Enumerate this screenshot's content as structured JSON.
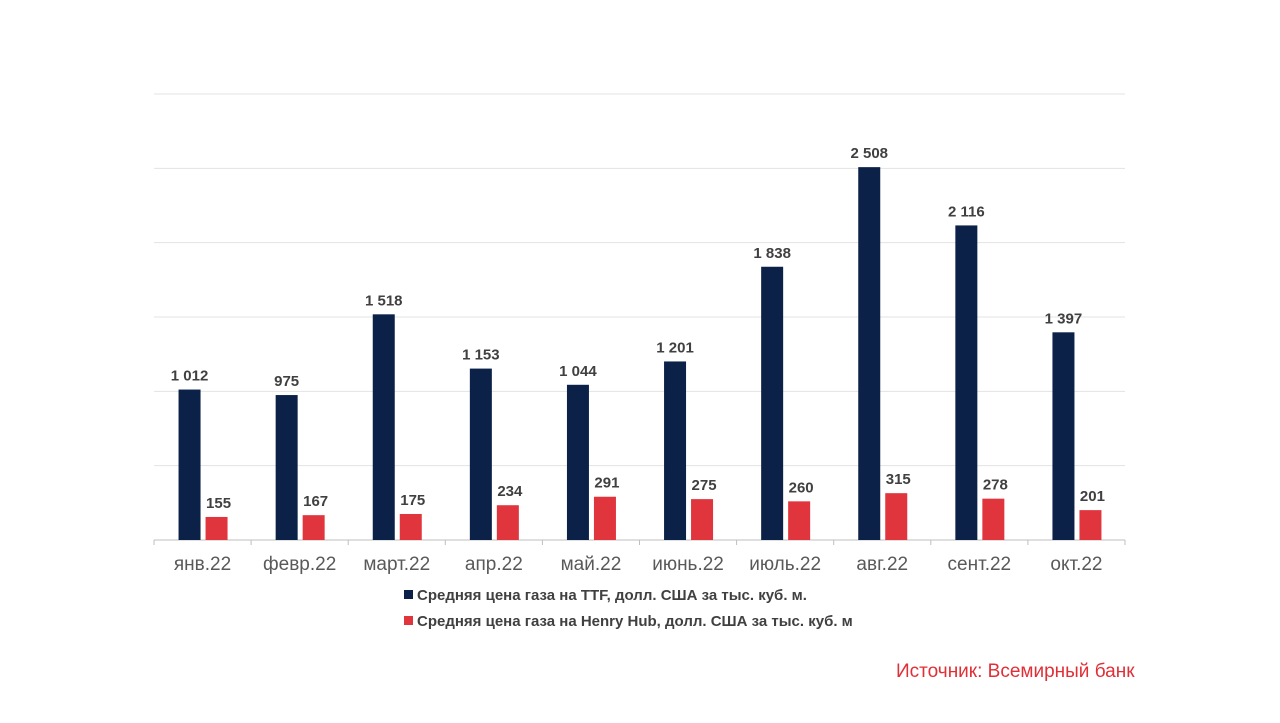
{
  "chart_data": {
    "type": "bar",
    "title": "",
    "xlabel": "",
    "ylabel": "",
    "ylim": [
      0,
      3000
    ],
    "grid": true,
    "categories": [
      "янв.22",
      "февр.22",
      "март.22",
      "апр.22",
      "май.22",
      "июнь.22",
      "июль.22",
      "авг.22",
      "сент.22",
      "окт.22"
    ],
    "series": [
      {
        "name": "Средняя цена газа на TTF, долл. США за тыс. куб. м.",
        "color": "#0b2147",
        "values": [
          1012,
          975,
          1518,
          1153,
          1044,
          1201,
          1838,
          2508,
          2116,
          1397
        ],
        "labels": [
          "1 012",
          "975",
          "1 518",
          "1 153",
          "1 044",
          "1 201",
          "1 838",
          "2 508",
          "2 116",
          "1 397"
        ]
      },
      {
        "name": "Средняя цена газа на Henry Hub, долл. США за тыс. куб. м",
        "color": "#e0353d",
        "values": [
          155,
          167,
          175,
          234,
          291,
          275,
          260,
          315,
          278,
          201
        ],
        "labels": [
          "155",
          "167",
          "175",
          "234",
          "291",
          "275",
          "260",
          "315",
          "278",
          "201"
        ]
      }
    ],
    "legend": "bottom",
    "source": "Источник: Всемирный банк"
  }
}
